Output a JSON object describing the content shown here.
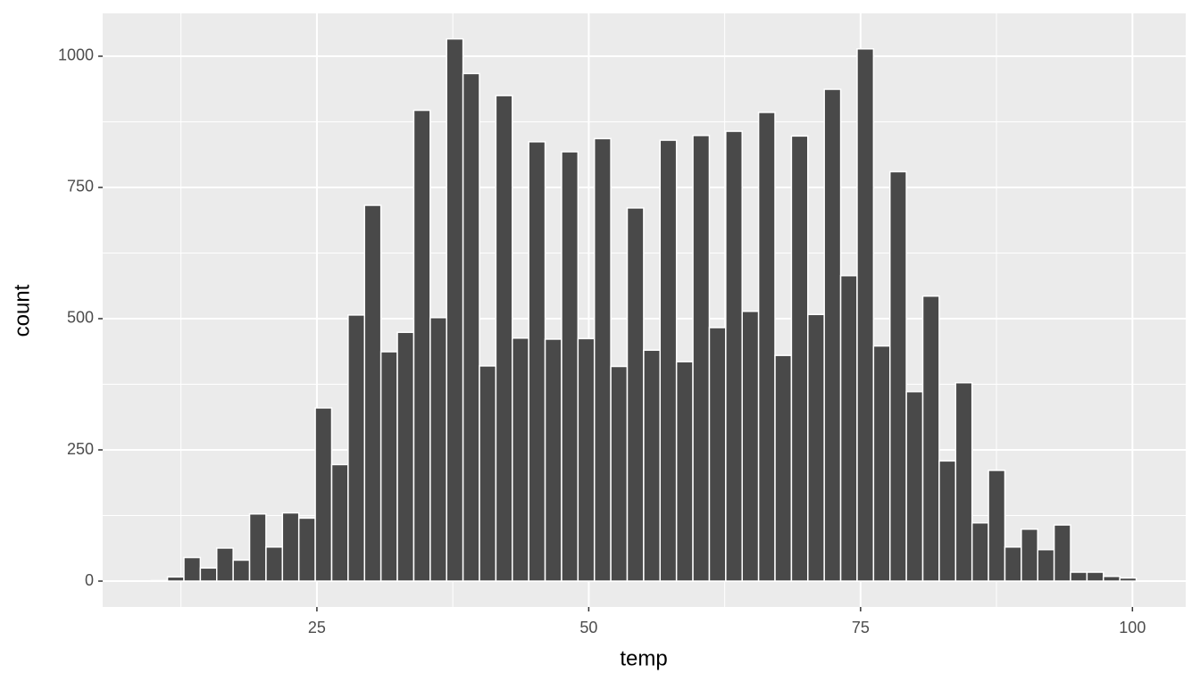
{
  "chart_data": {
    "type": "histogram",
    "x_label": "temp",
    "y_label": "count",
    "bins": [
      9.75,
      11.26,
      12.77,
      14.28,
      15.79,
      17.3,
      18.81,
      20.32,
      21.83,
      23.34,
      24.85,
      26.36,
      27.87,
      29.38,
      30.89,
      32.4,
      33.91,
      35.42,
      36.93,
      38.44,
      39.95,
      41.46,
      42.97,
      44.48,
      45.99,
      47.5,
      49.01,
      50.52,
      52.03,
      53.54,
      55.05,
      56.56,
      58.07,
      59.58,
      61.09,
      62.6,
      64.11,
      65.62,
      67.13,
      68.64,
      70.15,
      71.66,
      73.17,
      74.68,
      76.19,
      77.7,
      79.21,
      80.72,
      82.23,
      83.74,
      85.25,
      86.76,
      88.27,
      89.78,
      91.29,
      92.8,
      94.31,
      95.82,
      97.33,
      98.84,
      100.35
    ],
    "values": [
      1,
      8,
      45,
      25,
      63,
      40,
      128,
      65,
      130,
      120,
      330,
      222,
      507,
      716,
      437,
      474,
      897,
      502,
      1033,
      967,
      410,
      925,
      463,
      837,
      461,
      818,
      462,
      843,
      409,
      711,
      440,
      840,
      418,
      849,
      483,
      857,
      514,
      893,
      430,
      848,
      508,
      937,
      582,
      1014,
      448,
      780,
      361,
      543,
      229,
      378,
      111,
      211,
      65,
      99,
      60,
      107,
      17,
      17,
      9,
      6
    ],
    "color": "#494949",
    "xlim": [
      5.3,
      104.9
    ],
    "ylim": [
      -49.3,
      1081.6
    ],
    "xticks": [
      25,
      50,
      75,
      100
    ],
    "yticks": [
      0,
      250,
      500,
      750,
      1000
    ],
    "grid": true
  }
}
